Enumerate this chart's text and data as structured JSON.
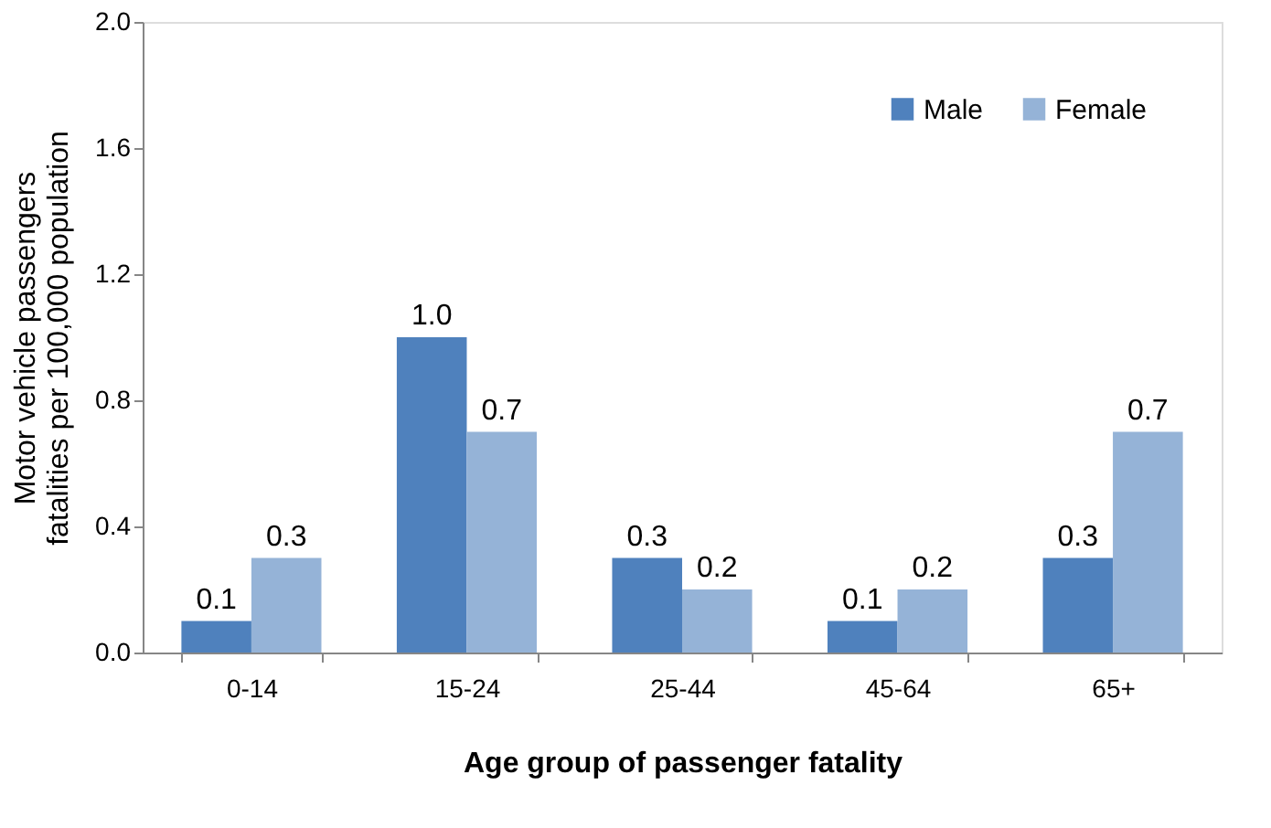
{
  "chart_data": {
    "type": "bar",
    "categories": [
      "0-14",
      "15-24",
      "25-44",
      "45-64",
      "65+"
    ],
    "series": [
      {
        "name": "Male",
        "color": "#4f81bd",
        "values": [
          0.1,
          1.0,
          0.3,
          0.1,
          0.3
        ],
        "value_labels": [
          "0.1",
          "1.0",
          "0.3",
          "0.1",
          "0.3"
        ]
      },
      {
        "name": "Female",
        "color": "#95b3d7",
        "values": [
          0.3,
          0.7,
          0.2,
          0.2,
          0.7
        ],
        "value_labels": [
          "0.3",
          "0.7",
          "0.2",
          "0.2",
          "0.7"
        ]
      }
    ],
    "xlabel": "Age group of passenger fatality",
    "ylabel": "Motor vehicle passengers\nfatalities per 100,000 population",
    "ylim": [
      0,
      2.0
    ],
    "yticks": [
      {
        "value": 0,
        "label": "0.0"
      },
      {
        "value": 0.4,
        "label": "0.4"
      },
      {
        "value": 0.8,
        "label": "0.8"
      },
      {
        "value": 1.2,
        "label": "1.2"
      },
      {
        "value": 1.6,
        "label": "1.6"
      },
      {
        "value": 2.0,
        "label": "2.0"
      }
    ],
    "grid": false,
    "legend": "top right"
  }
}
